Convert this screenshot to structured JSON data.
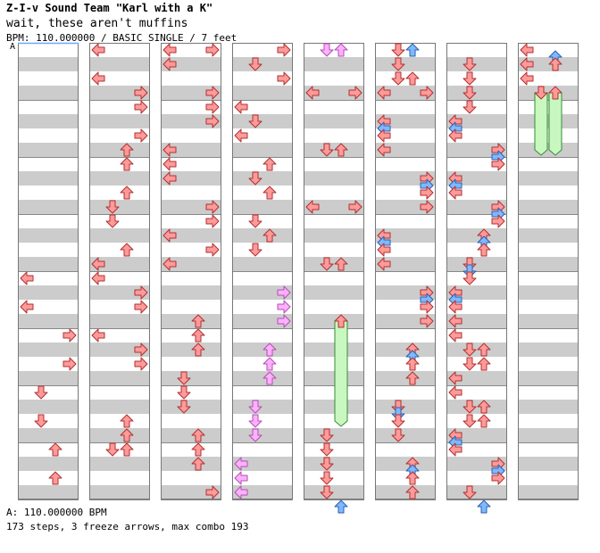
{
  "song": {
    "title": "Z-I-v Sound Team \"Karl with a K\"",
    "subtitle": "wait, these aren't muffins",
    "info": "BPM: 110.000000 / BASIC SINGLE / 7 feet",
    "marker": "A",
    "bpm_line": "A: 110.000000 BPM",
    "steps_line": "173 steps, 3 freeze arrows, max combo 193"
  },
  "chart_data": {
    "type": "step-chart",
    "columns": 8,
    "lanes": [
      "left",
      "down",
      "up",
      "right"
    ],
    "colors": {
      "red": "#ff9a9a",
      "blue": "#80b8ff",
      "pink": "#ffb0ff",
      "freeze": "#c8f8c0"
    },
    "arrows": [
      {
        "c": 0,
        "r": 16,
        "d": "left",
        "t": "red"
      },
      {
        "c": 0,
        "r": 18,
        "d": "left",
        "t": "red"
      },
      {
        "c": 0,
        "r": 20,
        "d": "right",
        "t": "red"
      },
      {
        "c": 0,
        "r": 22,
        "d": "right",
        "t": "red"
      },
      {
        "c": 0,
        "r": 24,
        "d": "down",
        "t": "red"
      },
      {
        "c": 0,
        "r": 26,
        "d": "down",
        "t": "red"
      },
      {
        "c": 0,
        "r": 28,
        "d": "up",
        "t": "red"
      },
      {
        "c": 0,
        "r": 30,
        "d": "up",
        "t": "red"
      },
      {
        "c": 1,
        "r": 0,
        "d": "left",
        "t": "red"
      },
      {
        "c": 1,
        "r": 2,
        "d": "left",
        "t": "red"
      },
      {
        "c": 1,
        "r": 3,
        "d": "right",
        "t": "red"
      },
      {
        "c": 1,
        "r": 4,
        "d": "right",
        "t": "red"
      },
      {
        "c": 1,
        "r": 6,
        "d": "right",
        "t": "red"
      },
      {
        "c": 1,
        "r": 7,
        "d": "up",
        "t": "red"
      },
      {
        "c": 1,
        "r": 8,
        "d": "up",
        "t": "red"
      },
      {
        "c": 1,
        "r": 10,
        "d": "up",
        "t": "red"
      },
      {
        "c": 1,
        "r": 11,
        "d": "down",
        "t": "red"
      },
      {
        "c": 1,
        "r": 12,
        "d": "down",
        "t": "red"
      },
      {
        "c": 1,
        "r": 14,
        "d": "up",
        "t": "red"
      },
      {
        "c": 1,
        "r": 15,
        "d": "left",
        "t": "red"
      },
      {
        "c": 1,
        "r": 16,
        "d": "left",
        "t": "red"
      },
      {
        "c": 1,
        "r": 17,
        "d": "right",
        "t": "red"
      },
      {
        "c": 1,
        "r": 18,
        "d": "right",
        "t": "red"
      },
      {
        "c": 1,
        "r": 20,
        "d": "left",
        "t": "red"
      },
      {
        "c": 1,
        "r": 21,
        "d": "right",
        "t": "red"
      },
      {
        "c": 1,
        "r": 22,
        "d": "right",
        "t": "red"
      },
      {
        "c": 1,
        "r": 26,
        "d": "up",
        "t": "red"
      },
      {
        "c": 1,
        "r": 27,
        "d": "up",
        "t": "red"
      },
      {
        "c": 1,
        "r": 28,
        "d": "down",
        "t": "red"
      },
      {
        "c": 1,
        "r": 28,
        "d": "up",
        "t": "red"
      },
      {
        "c": 2,
        "r": 0,
        "d": "left",
        "t": "red"
      },
      {
        "c": 2,
        "r": 0,
        "d": "right",
        "t": "red"
      },
      {
        "c": 2,
        "r": 1,
        "d": "left",
        "t": "red"
      },
      {
        "c": 2,
        "r": 3,
        "d": "right",
        "t": "red"
      },
      {
        "c": 2,
        "r": 4,
        "d": "right",
        "t": "red"
      },
      {
        "c": 2,
        "r": 5,
        "d": "right",
        "t": "red"
      },
      {
        "c": 2,
        "r": 7,
        "d": "left",
        "t": "red"
      },
      {
        "c": 2,
        "r": 8,
        "d": "left",
        "t": "red"
      },
      {
        "c": 2,
        "r": 9,
        "d": "left",
        "t": "red"
      },
      {
        "c": 2,
        "r": 11,
        "d": "right",
        "t": "red"
      },
      {
        "c": 2,
        "r": 12,
        "d": "right",
        "t": "red"
      },
      {
        "c": 2,
        "r": 13,
        "d": "left",
        "t": "red"
      },
      {
        "c": 2,
        "r": 14,
        "d": "right",
        "t": "red"
      },
      {
        "c": 2,
        "r": 15,
        "d": "left",
        "t": "red"
      },
      {
        "c": 2,
        "r": 19,
        "d": "up",
        "t": "red"
      },
      {
        "c": 2,
        "r": 20,
        "d": "up",
        "t": "red"
      },
      {
        "c": 2,
        "r": 21,
        "d": "up",
        "t": "red"
      },
      {
        "c": 2,
        "r": 23,
        "d": "down",
        "t": "red"
      },
      {
        "c": 2,
        "r": 24,
        "d": "down",
        "t": "red"
      },
      {
        "c": 2,
        "r": 25,
        "d": "down",
        "t": "red"
      },
      {
        "c": 2,
        "r": 27,
        "d": "up",
        "t": "red"
      },
      {
        "c": 2,
        "r": 28,
        "d": "up",
        "t": "red"
      },
      {
        "c": 2,
        "r": 29,
        "d": "up",
        "t": "red"
      },
      {
        "c": 2,
        "r": 31,
        "d": "right",
        "t": "red"
      },
      {
        "c": 3,
        "r": 0,
        "d": "right",
        "t": "red"
      },
      {
        "c": 3,
        "r": 1,
        "d": "down",
        "t": "red"
      },
      {
        "c": 3,
        "r": 2,
        "d": "right",
        "t": "red"
      },
      {
        "c": 3,
        "r": 4,
        "d": "left",
        "t": "red"
      },
      {
        "c": 3,
        "r": 5,
        "d": "down",
        "t": "red"
      },
      {
        "c": 3,
        "r": 6,
        "d": "left",
        "t": "red"
      },
      {
        "c": 3,
        "r": 8,
        "d": "up",
        "t": "red"
      },
      {
        "c": 3,
        "r": 9,
        "d": "down",
        "t": "red"
      },
      {
        "c": 3,
        "r": 10,
        "d": "up",
        "t": "red"
      },
      {
        "c": 3,
        "r": 12,
        "d": "down",
        "t": "red"
      },
      {
        "c": 3,
        "r": 13,
        "d": "up",
        "t": "red"
      },
      {
        "c": 3,
        "r": 14,
        "d": "down",
        "t": "red"
      },
      {
        "c": 3,
        "r": 17,
        "d": "right",
        "t": "pink"
      },
      {
        "c": 3,
        "r": 18,
        "d": "right",
        "t": "pink"
      },
      {
        "c": 3,
        "r": 19,
        "d": "right",
        "t": "pink"
      },
      {
        "c": 3,
        "r": 21,
        "d": "up",
        "t": "pink"
      },
      {
        "c": 3,
        "r": 22,
        "d": "up",
        "t": "pink"
      },
      {
        "c": 3,
        "r": 23,
        "d": "up",
        "t": "pink"
      },
      {
        "c": 3,
        "r": 25,
        "d": "down",
        "t": "pink"
      },
      {
        "c": 3,
        "r": 26,
        "d": "down",
        "t": "pink"
      },
      {
        "c": 3,
        "r": 27,
        "d": "down",
        "t": "pink"
      },
      {
        "c": 3,
        "r": 29,
        "d": "left",
        "t": "pink"
      },
      {
        "c": 3,
        "r": 30,
        "d": "left",
        "t": "pink"
      },
      {
        "c": 3,
        "r": 31,
        "d": "left",
        "t": "pink"
      },
      {
        "c": 4,
        "r": 0,
        "d": "down",
        "t": "pink"
      },
      {
        "c": 4,
        "r": 0,
        "d": "up",
        "t": "pink"
      },
      {
        "c": 4,
        "r": 3,
        "d": "left",
        "t": "red"
      },
      {
        "c": 4,
        "r": 3,
        "d": "right",
        "t": "red"
      },
      {
        "c": 4,
        "r": 7,
        "d": "down",
        "t": "red"
      },
      {
        "c": 4,
        "r": 7,
        "d": "up",
        "t": "red"
      },
      {
        "c": 4,
        "r": 11,
        "d": "left",
        "t": "red"
      },
      {
        "c": 4,
        "r": 11,
        "d": "right",
        "t": "red"
      },
      {
        "c": 4,
        "r": 15,
        "d": "down",
        "t": "red"
      },
      {
        "c": 4,
        "r": 15,
        "d": "up",
        "t": "red"
      },
      {
        "c": 4,
        "r": 19,
        "d": "up",
        "t": "red"
      },
      {
        "c": 4,
        "r": 27,
        "d": "down",
        "t": "red"
      },
      {
        "c": 4,
        "r": 28,
        "d": "down",
        "t": "red"
      },
      {
        "c": 4,
        "r": 29,
        "d": "down",
        "t": "red"
      },
      {
        "c": 4,
        "r": 30,
        "d": "down",
        "t": "red"
      },
      {
        "c": 4,
        "r": 31,
        "d": "down",
        "t": "red"
      },
      {
        "c": 4,
        "r": 32,
        "d": "up",
        "t": "blue"
      },
      {
        "c": 5,
        "r": 0,
        "d": "down",
        "t": "red"
      },
      {
        "c": 5,
        "r": 0,
        "d": "up",
        "t": "blue"
      },
      {
        "c": 5,
        "r": 1,
        "d": "down",
        "t": "red"
      },
      {
        "c": 5,
        "r": 2,
        "d": "down",
        "t": "red"
      },
      {
        "c": 5,
        "r": 2,
        "d": "up",
        "t": "red"
      },
      {
        "c": 5,
        "r": 3,
        "d": "left",
        "t": "red"
      },
      {
        "c": 5,
        "r": 3,
        "d": "right",
        "t": "red"
      },
      {
        "c": 5,
        "r": 5,
        "d": "left",
        "t": "red"
      },
      {
        "c": 5,
        "r": 5.5,
        "d": "left",
        "t": "blue"
      },
      {
        "c": 5,
        "r": 6,
        "d": "left",
        "t": "red"
      },
      {
        "c": 5,
        "r": 7,
        "d": "left",
        "t": "red"
      },
      {
        "c": 5,
        "r": 9,
        "d": "right",
        "t": "red"
      },
      {
        "c": 5,
        "r": 9.5,
        "d": "right",
        "t": "blue"
      },
      {
        "c": 5,
        "r": 10,
        "d": "right",
        "t": "red"
      },
      {
        "c": 5,
        "r": 11,
        "d": "right",
        "t": "red"
      },
      {
        "c": 5,
        "r": 13,
        "d": "left",
        "t": "red"
      },
      {
        "c": 5,
        "r": 13.5,
        "d": "left",
        "t": "blue"
      },
      {
        "c": 5,
        "r": 14,
        "d": "left",
        "t": "red"
      },
      {
        "c": 5,
        "r": 15,
        "d": "left",
        "t": "red"
      },
      {
        "c": 5,
        "r": 17,
        "d": "right",
        "t": "red"
      },
      {
        "c": 5,
        "r": 17.5,
        "d": "right",
        "t": "blue"
      },
      {
        "c": 5,
        "r": 18,
        "d": "right",
        "t": "red"
      },
      {
        "c": 5,
        "r": 19,
        "d": "right",
        "t": "red"
      },
      {
        "c": 5,
        "r": 21,
        "d": "up",
        "t": "red"
      },
      {
        "c": 5,
        "r": 21.5,
        "d": "up",
        "t": "blue"
      },
      {
        "c": 5,
        "r": 22,
        "d": "up",
        "t": "red"
      },
      {
        "c": 5,
        "r": 23,
        "d": "up",
        "t": "red"
      },
      {
        "c": 5,
        "r": 25,
        "d": "down",
        "t": "red"
      },
      {
        "c": 5,
        "r": 25.5,
        "d": "down",
        "t": "blue"
      },
      {
        "c": 5,
        "r": 26,
        "d": "down",
        "t": "red"
      },
      {
        "c": 5,
        "r": 27,
        "d": "down",
        "t": "red"
      },
      {
        "c": 5,
        "r": 29,
        "d": "up",
        "t": "red"
      },
      {
        "c": 5,
        "r": 29.5,
        "d": "up",
        "t": "blue"
      },
      {
        "c": 5,
        "r": 30,
        "d": "up",
        "t": "red"
      },
      {
        "c": 5,
        "r": 31,
        "d": "up",
        "t": "red"
      },
      {
        "c": 6,
        "r": 1,
        "d": "down",
        "t": "red"
      },
      {
        "c": 6,
        "r": 2,
        "d": "down",
        "t": "red"
      },
      {
        "c": 6,
        "r": 3,
        "d": "down",
        "t": "red"
      },
      {
        "c": 6,
        "r": 4,
        "d": "down",
        "t": "red"
      },
      {
        "c": 6,
        "r": 5,
        "d": "left",
        "t": "red"
      },
      {
        "c": 6,
        "r": 5.5,
        "d": "left",
        "t": "blue"
      },
      {
        "c": 6,
        "r": 6,
        "d": "left",
        "t": "red"
      },
      {
        "c": 6,
        "r": 7,
        "d": "right",
        "t": "red"
      },
      {
        "c": 6,
        "r": 7.5,
        "d": "right",
        "t": "blue"
      },
      {
        "c": 6,
        "r": 8,
        "d": "right",
        "t": "red"
      },
      {
        "c": 6,
        "r": 9,
        "d": "left",
        "t": "red"
      },
      {
        "c": 6,
        "r": 9.5,
        "d": "left",
        "t": "blue"
      },
      {
        "c": 6,
        "r": 10,
        "d": "left",
        "t": "red"
      },
      {
        "c": 6,
        "r": 11,
        "d": "right",
        "t": "red"
      },
      {
        "c": 6,
        "r": 11.5,
        "d": "right",
        "t": "blue"
      },
      {
        "c": 6,
        "r": 12,
        "d": "right",
        "t": "red"
      },
      {
        "c": 6,
        "r": 13,
        "d": "up",
        "t": "red"
      },
      {
        "c": 6,
        "r": 13.5,
        "d": "up",
        "t": "blue"
      },
      {
        "c": 6,
        "r": 14,
        "d": "up",
        "t": "red"
      },
      {
        "c": 6,
        "r": 15,
        "d": "down",
        "t": "red"
      },
      {
        "c": 6,
        "r": 15.5,
        "d": "down",
        "t": "blue"
      },
      {
        "c": 6,
        "r": 16,
        "d": "down",
        "t": "red"
      },
      {
        "c": 6,
        "r": 17,
        "d": "left",
        "t": "red"
      },
      {
        "c": 6,
        "r": 17.5,
        "d": "left",
        "t": "blue"
      },
      {
        "c": 6,
        "r": 18,
        "d": "left",
        "t": "red"
      },
      {
        "c": 6,
        "r": 19,
        "d": "left",
        "t": "red"
      },
      {
        "c": 6,
        "r": 20,
        "d": "left",
        "t": "red"
      },
      {
        "c": 6,
        "r": 21,
        "d": "down",
        "t": "red"
      },
      {
        "c": 6,
        "r": 21,
        "d": "up",
        "t": "red"
      },
      {
        "c": 6,
        "r": 22,
        "d": "down",
        "t": "red"
      },
      {
        "c": 6,
        "r": 22,
        "d": "up",
        "t": "red"
      },
      {
        "c": 6,
        "r": 23,
        "d": "left",
        "t": "red"
      },
      {
        "c": 6,
        "r": 24,
        "d": "left",
        "t": "red"
      },
      {
        "c": 6,
        "r": 25,
        "d": "down",
        "t": "red"
      },
      {
        "c": 6,
        "r": 25,
        "d": "up",
        "t": "red"
      },
      {
        "c": 6,
        "r": 26,
        "d": "down",
        "t": "red"
      },
      {
        "c": 6,
        "r": 26,
        "d": "up",
        "t": "red"
      },
      {
        "c": 6,
        "r": 27,
        "d": "left",
        "t": "red"
      },
      {
        "c": 6,
        "r": 27.5,
        "d": "left",
        "t": "blue"
      },
      {
        "c": 6,
        "r": 28,
        "d": "left",
        "t": "red"
      },
      {
        "c": 6,
        "r": 29,
        "d": "right",
        "t": "red"
      },
      {
        "c": 6,
        "r": 29.5,
        "d": "right",
        "t": "blue"
      },
      {
        "c": 6,
        "r": 30,
        "d": "right",
        "t": "red"
      },
      {
        "c": 6,
        "r": 31,
        "d": "down",
        "t": "red"
      },
      {
        "c": 6,
        "r": 32,
        "d": "up",
        "t": "blue"
      },
      {
        "c": 7,
        "r": 0,
        "d": "left",
        "t": "red"
      },
      {
        "c": 7,
        "r": 0.5,
        "d": "up",
        "t": "blue"
      },
      {
        "c": 7,
        "r": 1,
        "d": "left",
        "t": "red"
      },
      {
        "c": 7,
        "r": 1,
        "d": "up",
        "t": "red"
      },
      {
        "c": 7,
        "r": 2,
        "d": "left",
        "t": "red"
      },
      {
        "c": 7,
        "r": 3,
        "d": "down",
        "t": "red"
      },
      {
        "c": 7,
        "r": 3,
        "d": "up",
        "t": "red"
      }
    ],
    "freezes": [
      {
        "c": 4,
        "lane": "up",
        "start": 19,
        "end": 26
      },
      {
        "c": 7,
        "lane": "down",
        "start": 3,
        "end": 7
      },
      {
        "c": 7,
        "lane": "up",
        "start": 3,
        "end": 7
      }
    ]
  }
}
